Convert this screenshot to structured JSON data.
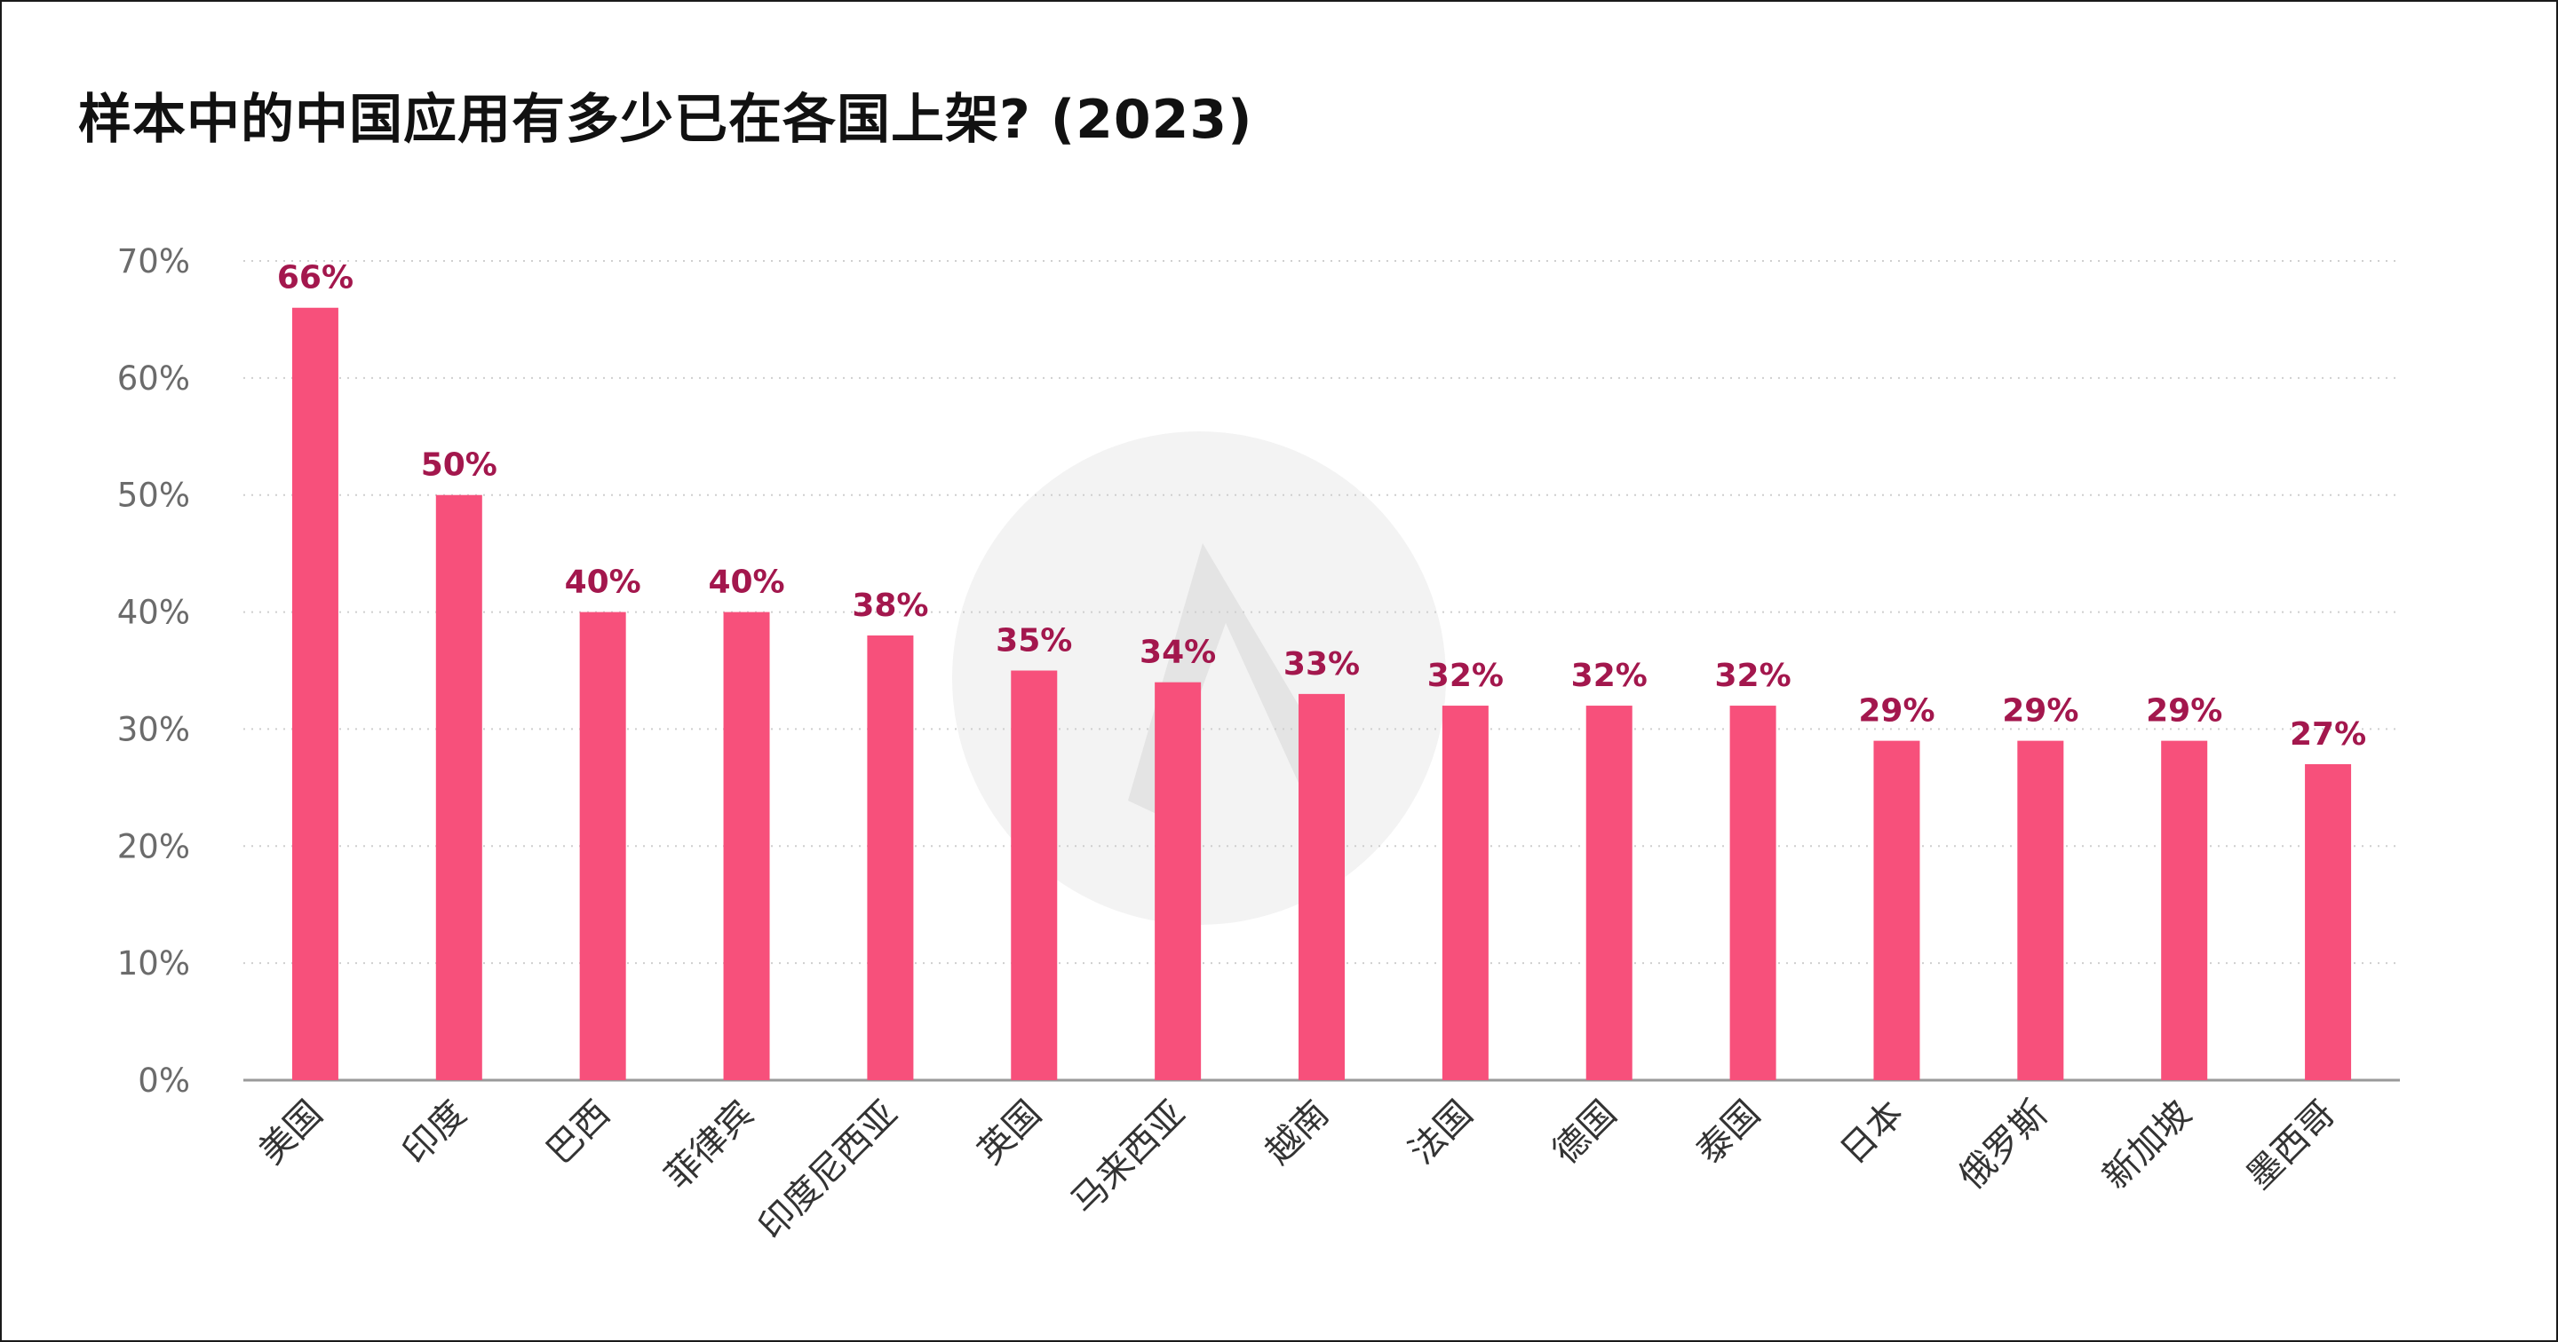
{
  "title": "样本中的中国应用有多少已在各国上架? (2023)",
  "colors": {
    "bar": "#f7507b",
    "value_label": "#a3174d",
    "grid": "#cfcfcf",
    "axis": "#9a9a9a",
    "watermark": "#f3f3f3"
  },
  "chart_data": {
    "type": "bar",
    "title": "样本中的中国应用有多少已在各国上架? (2023)",
    "xlabel": "",
    "ylabel": "",
    "ylim": [
      0,
      70
    ],
    "y_ticks": [
      0,
      10,
      20,
      30,
      40,
      50,
      60,
      70
    ],
    "y_tick_labels": [
      "0%",
      "10%",
      "20%",
      "30%",
      "40%",
      "50%",
      "60%",
      "70%"
    ],
    "categories": [
      "美国",
      "印度",
      "巴西",
      "菲律宾",
      "印度尼西亚",
      "英国",
      "马来西亚",
      "越南",
      "法国",
      "德国",
      "泰国",
      "日本",
      "俄罗斯",
      "新加坡",
      "墨西哥"
    ],
    "values": [
      66,
      50,
      40,
      40,
      38,
      35,
      34,
      33,
      32,
      32,
      32,
      29,
      29,
      29,
      27
    ],
    "value_labels": [
      "66%",
      "50%",
      "40%",
      "40%",
      "38%",
      "35%",
      "34%",
      "33%",
      "32%",
      "32%",
      "32%",
      "29%",
      "29%",
      "29%",
      "27%"
    ],
    "grid": "horizontal dotted",
    "legend": "none"
  }
}
